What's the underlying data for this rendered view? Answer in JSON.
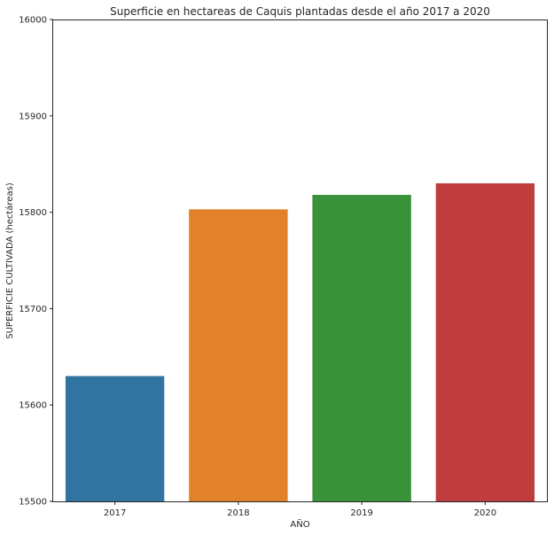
{
  "chart_data": {
    "type": "bar",
    "title": "Superficie en hectareas de Caquis plantadas desde el año 2017 a 2020",
    "xlabel": "AÑO",
    "ylabel": "SUPERFICIE CULTIVADA (hectáreas)",
    "categories": [
      "2017",
      "2018",
      "2019",
      "2020"
    ],
    "values": [
      15630,
      15803,
      15818,
      15830
    ],
    "colors": [
      "#3274a1",
      "#e1812c",
      "#3a923a",
      "#c03d3e"
    ],
    "ylim": [
      15500,
      16000
    ],
    "yticks": [
      15500,
      15600,
      15700,
      15800,
      15900,
      16000
    ],
    "grid": false,
    "legend": "none"
  }
}
